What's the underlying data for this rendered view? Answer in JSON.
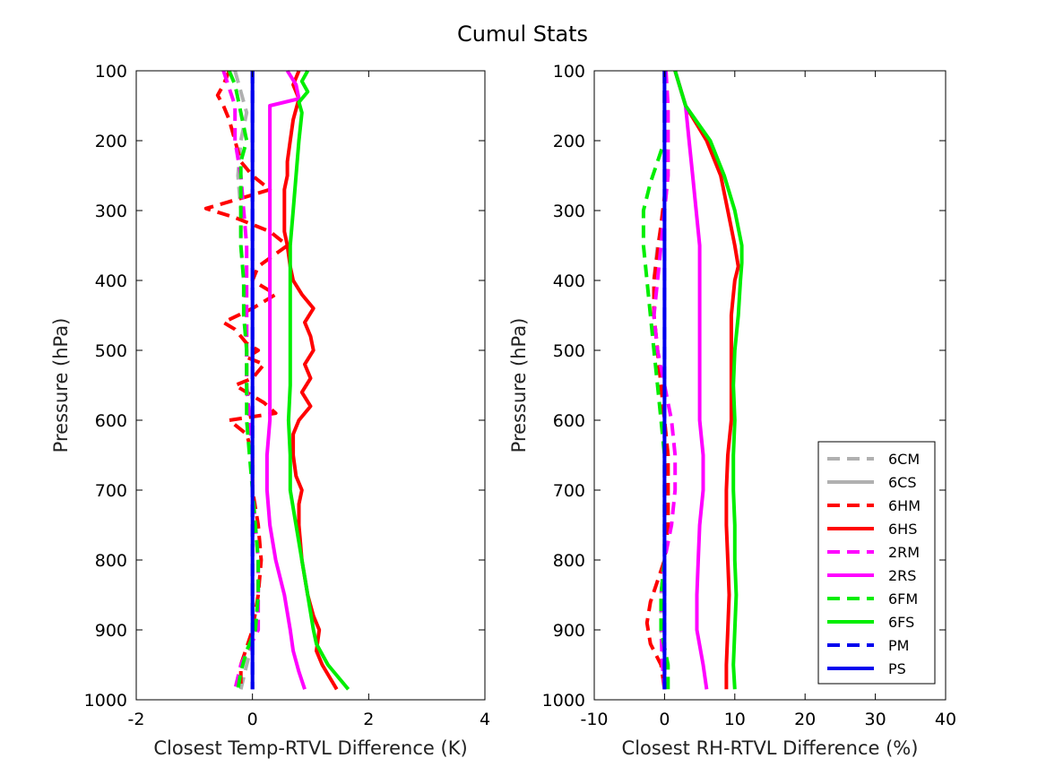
{
  "title": "Cumul Stats",
  "chart_data": [
    {
      "type": "line",
      "xlabel": "Closest Temp-RTVL Difference (K)",
      "ylabel": "Pressure (hPa)",
      "xlim": [
        -2,
        4
      ],
      "ylim": [
        100,
        1000
      ],
      "y_reversed": true,
      "xticks": [
        "-2",
        "0",
        "2",
        "4"
      ],
      "yticks": [
        "100",
        "200",
        "300",
        "400",
        "500",
        "600",
        "700",
        "800",
        "900",
        "1000"
      ],
      "xtick_values": [
        -2,
        0,
        2,
        4
      ],
      "ytick_values": [
        100,
        200,
        300,
        400,
        500,
        600,
        700,
        800,
        900,
        1000
      ],
      "series": [
        {
          "name": "6CM",
          "color": "#b0b0b0",
          "dash": true,
          "y": [
            100,
            130,
            160,
            200,
            250,
            300,
            350,
            400,
            450,
            500,
            550,
            600,
            650,
            700,
            750,
            800,
            850,
            900,
            950,
            985
          ],
          "x": [
            -0.3,
            -0.2,
            -0.1,
            -0.2,
            -0.25,
            -0.2,
            -0.2,
            -0.15,
            -0.1,
            -0.1,
            -0.1,
            -0.05,
            0,
            0,
            0.05,
            0.1,
            0.1,
            0.05,
            -0.1,
            -0.2
          ]
        },
        {
          "name": "6CS",
          "color": "#b0b0b0",
          "dash": false,
          "y": [
            100,
            200,
            300,
            400,
            500,
            600,
            700,
            800,
            900,
            985
          ],
          "x": [
            0,
            0,
            0,
            0,
            0,
            0,
            0,
            0,
            0,
            0
          ]
        },
        {
          "name": "6HM",
          "color": "#ff0000",
          "dash": true,
          "y": [
            100,
            120,
            135,
            150,
            170,
            200,
            230,
            250,
            270,
            280,
            297,
            310,
            330,
            350,
            380,
            400,
            420,
            440,
            460,
            470,
            480,
            490,
            500,
            510,
            520,
            540,
            550,
            560,
            575,
            590,
            600,
            620,
            650,
            700,
            750,
            800,
            850,
            900,
            950,
            985
          ],
          "x": [
            -0.4,
            -0.5,
            -0.6,
            -0.5,
            -0.4,
            -0.3,
            -0.2,
            0,
            0.3,
            -0.1,
            -0.8,
            -0.3,
            0.3,
            0.6,
            0.1,
            0,
            0.4,
            0,
            -0.5,
            -0.3,
            -0.2,
            -0.1,
            0.1,
            -0.1,
            0.2,
            0,
            -0.3,
            -0.1,
            0.2,
            0.4,
            -0.4,
            -0.1,
            0,
            0,
            0.1,
            0.15,
            0.1,
            0,
            -0.2,
            -0.2
          ]
        },
        {
          "name": "6HS",
          "color": "#ff0000",
          "dash": false,
          "y": [
            100,
            120,
            140,
            170,
            200,
            230,
            250,
            270,
            300,
            330,
            350,
            380,
            400,
            420,
            440,
            460,
            480,
            500,
            520,
            540,
            560,
            580,
            600,
            620,
            650,
            680,
            700,
            720,
            750,
            800,
            850,
            880,
            900,
            930,
            950,
            985
          ],
          "x": [
            0.8,
            0.7,
            0.8,
            0.7,
            0.65,
            0.6,
            0.6,
            0.55,
            0.55,
            0.55,
            0.6,
            0.65,
            0.7,
            0.85,
            1.05,
            0.9,
            1.0,
            1.05,
            0.9,
            1.0,
            0.85,
            1.0,
            0.8,
            0.7,
            0.7,
            0.75,
            0.85,
            0.8,
            0.8,
            0.85,
            0.95,
            1.05,
            1.15,
            1.1,
            1.2,
            1.45
          ]
        },
        {
          "name": "2RM",
          "color": "#ff00ff",
          "dash": true,
          "y": [
            100,
            150,
            200,
            250,
            300,
            350,
            400,
            450,
            500,
            550,
            600,
            650,
            700,
            750,
            800,
            850,
            900,
            950,
            985
          ],
          "x": [
            -0.5,
            -0.3,
            -0.3,
            -0.2,
            -0.15,
            -0.1,
            -0.1,
            -0.1,
            -0.1,
            -0.1,
            -0.05,
            0,
            0,
            0.05,
            0.1,
            0.1,
            0.1,
            -0.2,
            -0.3
          ]
        },
        {
          "name": "2RS",
          "color": "#ff00ff",
          "dash": false,
          "y": [
            100,
            120,
            140,
            150,
            200,
            250,
            300,
            350,
            400,
            450,
            500,
            550,
            600,
            650,
            700,
            750,
            800,
            850,
            900,
            930,
            960,
            985
          ],
          "x": [
            0.6,
            0.75,
            0.8,
            0.3,
            0.3,
            0.3,
            0.3,
            0.3,
            0.3,
            0.3,
            0.3,
            0.3,
            0.3,
            0.25,
            0.25,
            0.3,
            0.4,
            0.55,
            0.65,
            0.7,
            0.8,
            0.9
          ]
        },
        {
          "name": "6FM",
          "color": "#00ee00",
          "dash": true,
          "y": [
            100,
            120,
            140,
            160,
            200,
            230,
            260,
            300,
            350,
            400,
            450,
            500,
            550,
            600,
            650,
            700,
            750,
            800,
            850,
            900,
            930,
            960,
            985
          ],
          "x": [
            -0.4,
            -0.3,
            -0.25,
            -0.2,
            -0.1,
            -0.2,
            -0.2,
            -0.2,
            -0.2,
            -0.15,
            -0.15,
            -0.1,
            -0.1,
            -0.1,
            -0.05,
            0,
            0.05,
            0.1,
            0.1,
            0.05,
            -0.1,
            -0.2,
            -0.25
          ]
        },
        {
          "name": "6FS",
          "color": "#00ee00",
          "dash": false,
          "y": [
            100,
            115,
            130,
            145,
            160,
            200,
            250,
            300,
            350,
            400,
            450,
            500,
            550,
            600,
            650,
            700,
            750,
            800,
            850,
            900,
            920,
            950,
            985
          ],
          "x": [
            0.95,
            0.85,
            0.95,
            0.8,
            0.85,
            0.8,
            0.75,
            0.7,
            0.65,
            0.65,
            0.65,
            0.65,
            0.65,
            0.62,
            0.65,
            0.65,
            0.75,
            0.85,
            0.95,
            1.05,
            1.1,
            1.3,
            1.65
          ]
        },
        {
          "name": "PM",
          "color": "#0000ee",
          "dash": true,
          "y": [
            100,
            985
          ],
          "x": [
            0,
            0
          ]
        },
        {
          "name": "PS",
          "color": "#0000ee",
          "dash": false,
          "y": [
            100,
            985
          ],
          "x": [
            0,
            0
          ]
        }
      ]
    },
    {
      "type": "line",
      "xlabel": "Closest RH-RTVL Difference (%)",
      "ylabel": "Pressure (hPa)",
      "xlim": [
        -10,
        40
      ],
      "ylim": [
        100,
        1000
      ],
      "y_reversed": true,
      "xticks": [
        "-10",
        "0",
        "10",
        "20",
        "30",
        "40"
      ],
      "yticks": [
        "100",
        "200",
        "300",
        "400",
        "500",
        "600",
        "700",
        "800",
        "900",
        "1000"
      ],
      "xtick_values": [
        -10,
        0,
        10,
        20,
        30,
        40
      ],
      "ytick_values": [
        100,
        200,
        300,
        400,
        500,
        600,
        700,
        800,
        900,
        1000
      ],
      "series": [
        {
          "name": "6CM",
          "color": "#b0b0b0",
          "dash": true,
          "y": [
            100,
            150,
            200,
            250,
            300,
            350,
            400,
            450,
            500,
            550,
            600,
            650,
            700,
            750,
            800,
            850,
            900,
            950,
            985
          ],
          "x": [
            0,
            0.5,
            0.5,
            0.5,
            0,
            -1,
            -1.5,
            -1.5,
            -1,
            -0.5,
            0,
            0.5,
            0.5,
            0.5,
            0,
            -0.5,
            -0.5,
            0,
            0
          ]
        },
        {
          "name": "6CS",
          "color": "#b0b0b0",
          "dash": false,
          "y": [
            100,
            985
          ],
          "x": [
            0,
            0
          ]
        },
        {
          "name": "6HM",
          "color": "#ff0000",
          "dash": true,
          "y": [
            100,
            200,
            240,
            280,
            320,
            360,
            400,
            450,
            500,
            550,
            600,
            650,
            700,
            750,
            800,
            830,
            860,
            890,
            920,
            950,
            985
          ],
          "x": [
            0,
            0,
            0.5,
            0,
            -0.5,
            -1,
            -1.5,
            -1.5,
            -1,
            -0.5,
            0,
            0.5,
            0.5,
            0.5,
            0,
            -1,
            -2,
            -2.5,
            -2,
            -0.5,
            0
          ]
        },
        {
          "name": "6HS",
          "color": "#ff0000",
          "dash": false,
          "y": [
            100,
            150,
            200,
            250,
            300,
            350,
            380,
            400,
            450,
            500,
            550,
            600,
            650,
            700,
            750,
            800,
            850,
            900,
            950,
            985
          ],
          "x": [
            1.5,
            3,
            6,
            8,
            9,
            10,
            10.5,
            10,
            9.5,
            9.5,
            9.5,
            9.5,
            9,
            8.8,
            8.8,
            9,
            9.2,
            9,
            8.8,
            8.8
          ]
        },
        {
          "name": "2RM",
          "color": "#ff00ff",
          "dash": true,
          "y": [
            100,
            150,
            200,
            250,
            300,
            350,
            400,
            450,
            500,
            550,
            600,
            650,
            700,
            750,
            800,
            850,
            900,
            950,
            985
          ],
          "x": [
            0.2,
            0.5,
            0.5,
            0.5,
            0,
            -0.5,
            -1,
            -1.5,
            -1,
            0,
            1,
            1.5,
            1.5,
            1,
            0,
            -0.5,
            -0.5,
            -0.3,
            0
          ]
        },
        {
          "name": "2RS",
          "color": "#ff00ff",
          "dash": false,
          "y": [
            100,
            150,
            200,
            250,
            300,
            350,
            400,
            450,
            500,
            550,
            600,
            650,
            700,
            750,
            800,
            850,
            900,
            950,
            985
          ],
          "x": [
            1.5,
            3,
            3.5,
            4,
            4.5,
            5,
            5,
            5,
            5,
            5,
            5,
            5.5,
            5.5,
            5,
            4.8,
            4.6,
            4.6,
            5.5,
            6
          ]
        },
        {
          "name": "6FM",
          "color": "#00ee00",
          "dash": true,
          "y": [
            100,
            150,
            200,
            230,
            260,
            300,
            350,
            400,
            450,
            500,
            550,
            600,
            650,
            700,
            750,
            800,
            850,
            900,
            950,
            985
          ],
          "x": [
            0,
            0,
            0,
            -1,
            -2,
            -3,
            -3,
            -2.5,
            -2,
            -1.5,
            -1,
            -0.5,
            0,
            0,
            0,
            0,
            -0.5,
            -0.5,
            0.5,
            0.5
          ]
        },
        {
          "name": "6FS",
          "color": "#00ee00",
          "dash": false,
          "y": [
            100,
            150,
            200,
            250,
            300,
            350,
            375,
            400,
            450,
            500,
            550,
            600,
            650,
            700,
            750,
            800,
            850,
            900,
            950,
            985
          ],
          "x": [
            1.5,
            3,
            6.5,
            8.5,
            10,
            11,
            11,
            10.8,
            10.5,
            10,
            9.8,
            10,
            9.8,
            9.8,
            10,
            10,
            10.2,
            10,
            9.8,
            10
          ]
        },
        {
          "name": "PM",
          "color": "#0000ee",
          "dash": true,
          "y": [
            100,
            985
          ],
          "x": [
            0,
            0
          ]
        },
        {
          "name": "PS",
          "color": "#0000ee",
          "dash": false,
          "y": [
            100,
            985
          ],
          "x": [
            0,
            0
          ]
        }
      ]
    }
  ],
  "legend": {
    "location": "bottom-right of right panel",
    "entries": [
      "6CM",
      "6CS",
      "6HM",
      "6HS",
      "2RM",
      "2RS",
      "6FM",
      "6FS",
      "PM",
      "PS"
    ]
  }
}
